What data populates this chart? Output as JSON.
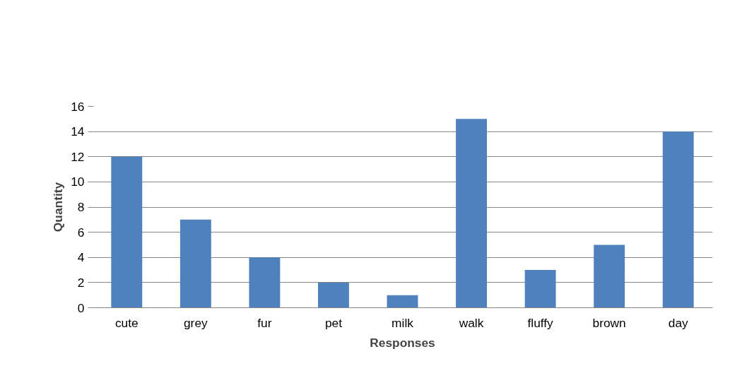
{
  "chart_data": {
    "type": "bar",
    "xlabel": "Responses",
    "ylabel": "Quantity",
    "categories": [
      "cute",
      "grey",
      "fur",
      "pet",
      "milk",
      "walk",
      "fluffy",
      "brown",
      "day"
    ],
    "values": [
      12,
      7,
      4,
      2,
      1,
      15,
      3,
      5,
      14
    ],
    "color": "#4f81bd",
    "ylim": [
      0,
      16
    ],
    "yticks": [
      0,
      2,
      4,
      6,
      8,
      10,
      12,
      14,
      16
    ],
    "grid": "y"
  }
}
